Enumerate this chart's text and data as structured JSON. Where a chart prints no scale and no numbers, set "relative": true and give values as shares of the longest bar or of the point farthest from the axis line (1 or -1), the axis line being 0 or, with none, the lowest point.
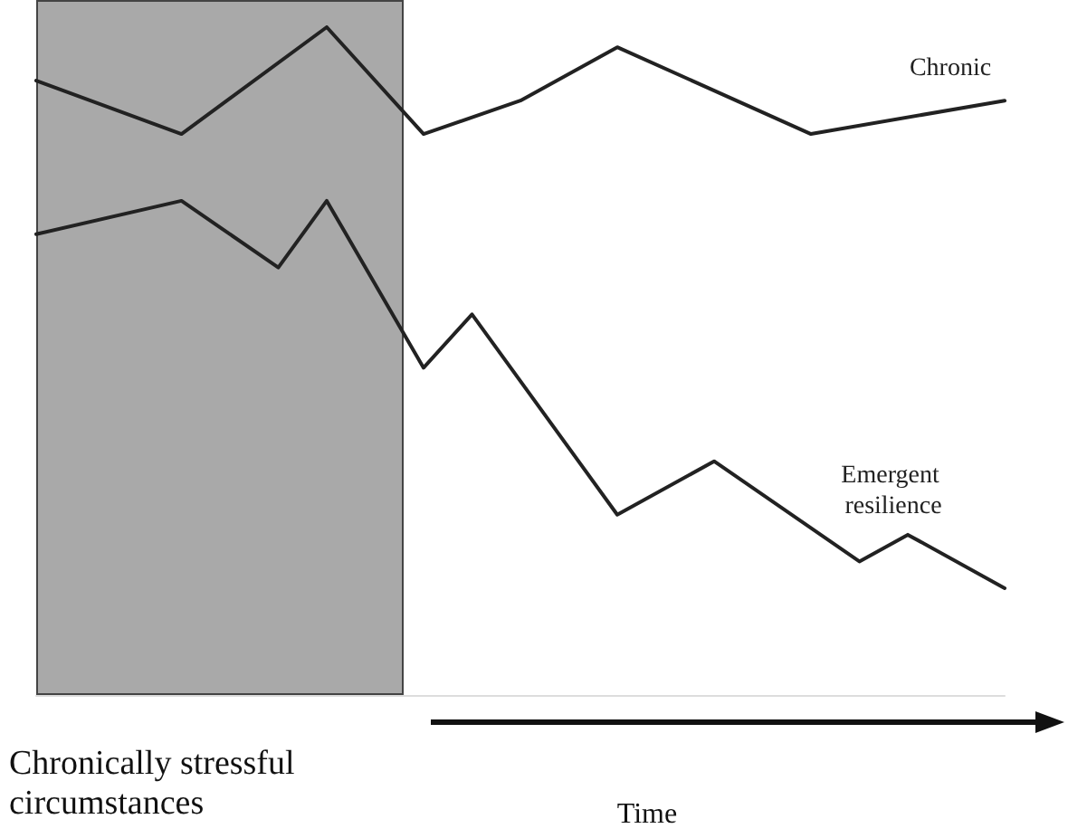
{
  "chart_data": {
    "type": "line",
    "relative": true,
    "xlabel": "Time",
    "grid": false,
    "legend": false,
    "marker": "none",
    "line_style": "solid",
    "categories": [
      null,
      null,
      null,
      null,
      null,
      null,
      null,
      null,
      null,
      null,
      null,
      null,
      null,
      null,
      null,
      null,
      null,
      null,
      null,
      null,
      null
    ],
    "series": [
      {
        "name": "Chronic",
        "color": "#222222",
        "values": [
          0.92,
          null,
          null,
          0.84,
          null,
          null,
          1,
          null,
          0.84,
          null,
          0.89,
          null,
          0.97,
          null,
          null,
          null,
          0.84,
          null,
          null,
          null,
          0.89
        ]
      },
      {
        "name": "Emergent resilience",
        "color": "#222222",
        "values": [
          0.69,
          null,
          null,
          0.74,
          null,
          0.64,
          0.74,
          null,
          0.49,
          0.57,
          null,
          null,
          0.27,
          null,
          0.35,
          null,
          null,
          0.2,
          0.24,
          null,
          0.16
        ]
      }
    ],
    "annotations": [
      "Chronically stressful circumstances"
    ]
  }
}
